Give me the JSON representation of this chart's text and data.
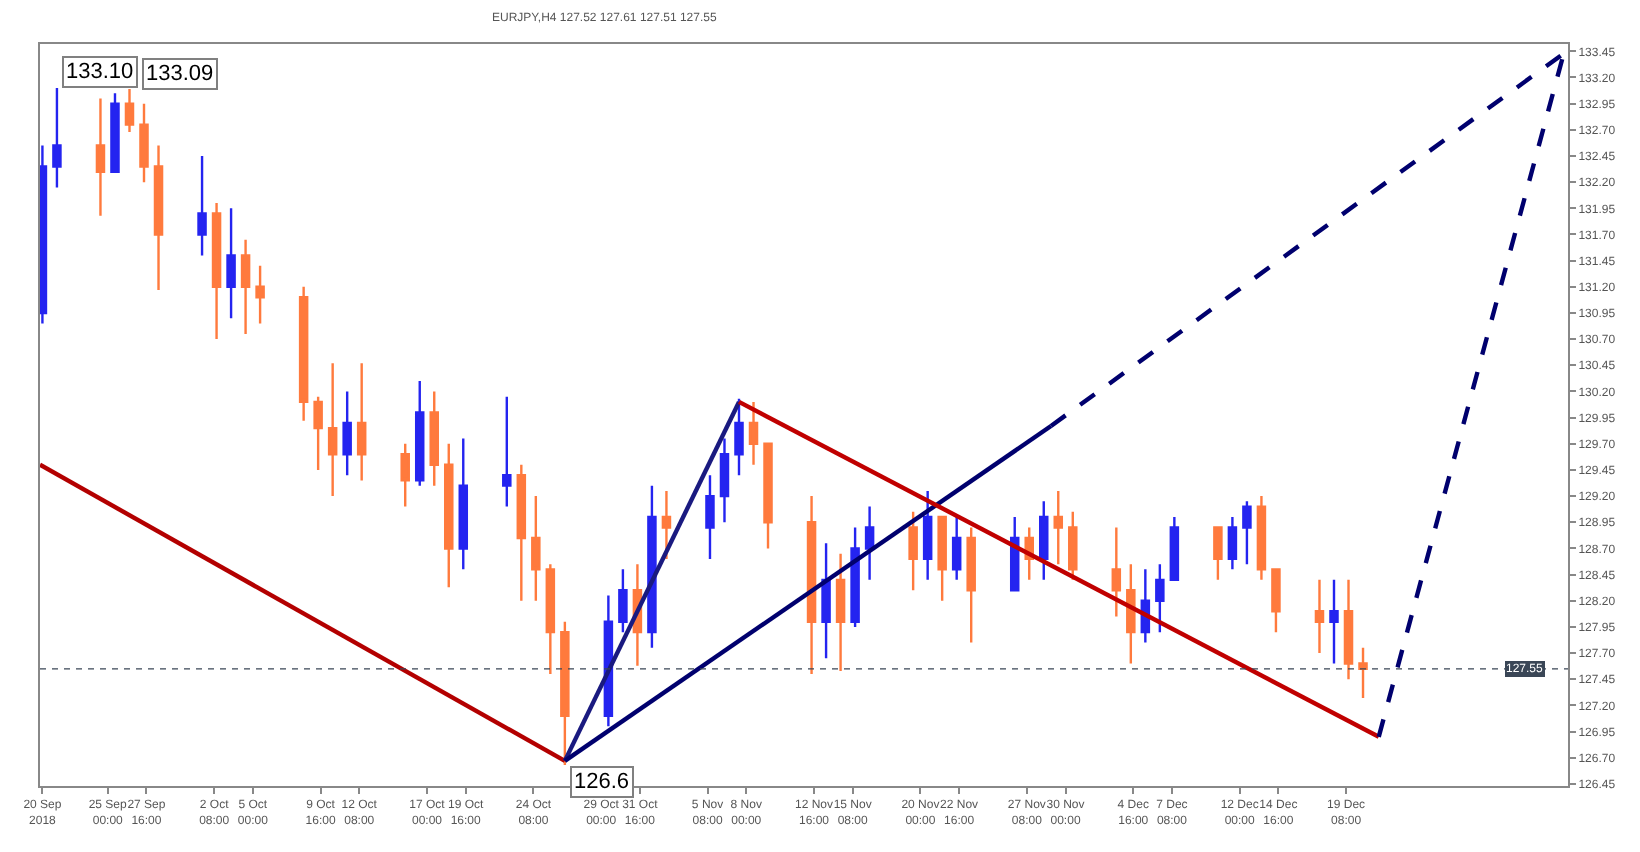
{
  "chart_data": {
    "type": "candlestick",
    "title": "EURJPY,H4 127.52 127.61 127.51 127.55",
    "x": [
      "2018-09-20T12:00",
      "2018-09-21T12:00",
      "2018-09-24T12:00",
      "2018-09-25T12:00",
      "2018-09-26T12:00",
      "2018-09-27T12:00",
      "2018-09-28T12:00",
      "2018-10-01T12:00",
      "2018-10-02T12:00",
      "2018-10-03T12:00",
      "2018-10-04T12:00",
      "2018-10-05T12:00",
      "2018-10-08T12:00",
      "2018-10-09T12:00",
      "2018-10-10T12:00",
      "2018-10-11T12:00",
      "2018-10-12T12:00",
      "2018-10-15T12:00",
      "2018-10-16T12:00",
      "2018-10-17T12:00",
      "2018-10-18T12:00",
      "2018-10-19T12:00",
      "2018-10-22T12:00",
      "2018-10-23T12:00",
      "2018-10-24T12:00",
      "2018-10-25T12:00",
      "2018-10-26T12:00",
      "2018-10-29T12:00",
      "2018-10-30T12:00",
      "2018-10-31T12:00",
      "2018-11-01T12:00",
      "2018-11-02T12:00",
      "2018-11-05T12:00",
      "2018-11-06T12:00",
      "2018-11-07T12:00",
      "2018-11-08T12:00",
      "2018-11-09T12:00",
      "2018-11-12T12:00",
      "2018-11-13T12:00",
      "2018-11-14T12:00",
      "2018-11-15T12:00",
      "2018-11-16T12:00",
      "2018-11-19T12:00",
      "2018-11-20T12:00",
      "2018-11-21T12:00",
      "2018-11-22T12:00",
      "2018-11-23T12:00",
      "2018-11-26T12:00",
      "2018-11-27T12:00",
      "2018-11-28T12:00",
      "2018-11-29T12:00",
      "2018-11-30T12:00",
      "2018-12-03T12:00",
      "2018-12-04T12:00",
      "2018-12-05T12:00",
      "2018-12-06T12:00",
      "2018-12-07T12:00",
      "2018-12-10T12:00",
      "2018-12-11T12:00",
      "2018-12-12T12:00",
      "2018-12-13T12:00",
      "2018-12-14T12:00",
      "2018-12-17T12:00",
      "2018-12-18T12:00",
      "2018-12-19T12:00",
      "2018-12-20T12:00"
    ],
    "ohlc": [
      [
        130.95,
        132.55,
        130.85,
        132.35
      ],
      [
        132.35,
        133.1,
        132.15,
        132.55
      ],
      [
        132.55,
        133.0,
        131.88,
        132.3
      ],
      [
        132.3,
        133.05,
        132.3,
        132.95
      ],
      [
        132.95,
        133.09,
        132.68,
        132.75
      ],
      [
        132.75,
        132.95,
        132.2,
        132.35
      ],
      [
        132.35,
        132.55,
        131.17,
        131.7
      ],
      [
        131.7,
        132.45,
        131.5,
        131.9
      ],
      [
        131.9,
        132.0,
        130.7,
        131.2
      ],
      [
        131.2,
        131.95,
        130.9,
        131.5
      ],
      [
        131.5,
        131.65,
        130.75,
        131.2
      ],
      [
        131.2,
        131.4,
        130.85,
        131.1
      ],
      [
        131.1,
        131.2,
        129.92,
        130.1
      ],
      [
        130.1,
        130.15,
        129.45,
        129.85
      ],
      [
        129.85,
        130.47,
        129.2,
        129.6
      ],
      [
        129.6,
        130.2,
        129.4,
        129.9
      ],
      [
        129.9,
        130.47,
        129.35,
        129.6
      ],
      [
        129.6,
        129.7,
        129.1,
        129.35
      ],
      [
        129.35,
        130.3,
        129.3,
        130.0
      ],
      [
        130.0,
        130.2,
        129.3,
        129.5
      ],
      [
        129.5,
        129.7,
        128.33,
        128.7
      ],
      [
        128.7,
        129.75,
        128.5,
        129.3
      ],
      [
        129.3,
        130.15,
        129.1,
        129.4
      ],
      [
        129.4,
        129.5,
        128.2,
        128.8
      ],
      [
        128.8,
        129.2,
        128.2,
        128.5
      ],
      [
        128.5,
        128.55,
        127.5,
        127.9
      ],
      [
        127.9,
        128.0,
        126.63,
        127.1
      ],
      [
        127.1,
        128.25,
        127.0,
        128.0
      ],
      [
        128.0,
        128.5,
        127.9,
        128.3
      ],
      [
        128.3,
        128.55,
        127.58,
        127.9
      ],
      [
        127.9,
        129.3,
        127.75,
        129.0
      ],
      [
        129.0,
        129.25,
        128.6,
        128.9
      ],
      [
        128.9,
        129.4,
        128.6,
        129.2
      ],
      [
        129.2,
        129.75,
        128.95,
        129.6
      ],
      [
        129.6,
        130.13,
        129.4,
        129.9
      ],
      [
        129.9,
        130.1,
        129.5,
        129.7
      ],
      [
        129.7,
        129.7,
        128.7,
        128.95
      ],
      [
        128.95,
        129.2,
        127.5,
        128.0
      ],
      [
        128.0,
        128.75,
        127.65,
        128.4
      ],
      [
        128.4,
        128.65,
        127.53,
        128.0
      ],
      [
        128.0,
        128.9,
        127.95,
        128.7
      ],
      [
        128.7,
        129.1,
        128.4,
        128.9
      ],
      [
        128.9,
        129.05,
        128.3,
        128.6
      ],
      [
        128.6,
        129.25,
        128.4,
        129.0
      ],
      [
        129.0,
        129.0,
        128.2,
        128.5
      ],
      [
        128.5,
        129.0,
        128.4,
        128.8
      ],
      [
        128.8,
        128.9,
        127.8,
        128.3
      ],
      [
        128.3,
        129.0,
        128.3,
        128.8
      ],
      [
        128.8,
        128.9,
        128.4,
        128.6
      ],
      [
        128.6,
        129.15,
        128.4,
        129.0
      ],
      [
        129.0,
        129.25,
        128.55,
        128.9
      ],
      [
        128.9,
        129.05,
        128.4,
        128.5
      ],
      [
        128.5,
        128.9,
        128.05,
        128.3
      ],
      [
        128.3,
        128.55,
        127.6,
        127.9
      ],
      [
        127.9,
        128.5,
        127.8,
        128.2
      ],
      [
        128.2,
        128.55,
        127.9,
        128.4
      ],
      [
        128.4,
        129.0,
        128.4,
        128.9
      ],
      [
        128.9,
        128.9,
        128.4,
        128.6
      ],
      [
        128.6,
        129.0,
        128.5,
        128.9
      ],
      [
        128.9,
        129.15,
        128.55,
        129.1
      ],
      [
        129.1,
        129.2,
        128.4,
        128.5
      ],
      [
        128.5,
        128.5,
        127.9,
        128.1
      ],
      [
        128.1,
        128.4,
        127.7,
        128.0
      ],
      [
        128.0,
        128.4,
        127.6,
        128.1
      ],
      [
        128.1,
        128.4,
        127.45,
        127.6
      ],
      [
        127.6,
        127.75,
        127.27,
        127.55
      ]
    ],
    "colors": [
      "#2424f0",
      "#2424f0",
      "#ff7a3d",
      "#2424f0",
      "#ff7a3d",
      "#ff7a3d",
      "#ff7a3d",
      "#2424f0",
      "#ff7a3d",
      "#2424f0",
      "#ff7a3d",
      "#ff7a3d",
      "#ff7a3d",
      "#ff7a3d",
      "#ff7a3d",
      "#2424f0",
      "#ff7a3d",
      "#ff7a3d",
      "#2424f0",
      "#ff7a3d",
      "#ff7a3d",
      "#2424f0",
      "#2424f0",
      "#ff7a3d",
      "#ff7a3d",
      "#ff7a3d",
      "#ff7a3d",
      "#2424f0",
      "#2424f0",
      "#ff7a3d",
      "#2424f0",
      "#ff7a3d",
      "#2424f0",
      "#2424f0",
      "#2424f0",
      "#ff7a3d",
      "#ff7a3d",
      "#ff7a3d",
      "#2424f0",
      "#ff7a3d",
      "#2424f0",
      "#2424f0",
      "#ff7a3d",
      "#2424f0",
      "#ff7a3d",
      "#2424f0",
      "#ff7a3d",
      "#2424f0",
      "#ff7a3d",
      "#2424f0",
      "#ff7a3d",
      "#ff7a3d",
      "#ff7a3d",
      "#ff7a3d",
      "#2424f0",
      "#2424f0",
      "#2424f0",
      "#ff7a3d",
      "#2424f0",
      "#2424f0",
      "#ff7a3d",
      "#ff7a3d",
      "#ff7a3d",
      "#2424f0",
      "#ff7a3d",
      "#ff7a3d"
    ],
    "series": [
      {
        "type": "line",
        "color": "#b30000",
        "x": [
          "2018-09-20T08:00",
          "2018-10-26T12:00"
        ],
        "values": [
          129.5,
          126.67
        ],
        "line_style": "solid"
      },
      {
        "type": "line",
        "color": "#1a1a80",
        "x": [
          "2018-10-26T12:00",
          "2018-11-07T12:00"
        ],
        "values": [
          126.67,
          130.1
        ],
        "line_style": "solid"
      },
      {
        "type": "line",
        "color": "#00006e",
        "x": [
          "2018-10-26T12:00",
          "2018-11-29T00:00"
        ],
        "values": [
          126.67,
          129.87
        ],
        "line_style": "solid"
      },
      {
        "type": "line",
        "color": "#00006e",
        "x": [
          "2018-11-29T00:00",
          "2019-01-03T08:00"
        ],
        "values": [
          129.87,
          133.43
        ],
        "line_style": "dashed"
      },
      {
        "type": "line",
        "color": "#c00000",
        "x": [
          "2018-11-07T12:00",
          "2018-12-21T14:00"
        ],
        "values": [
          130.1,
          126.9
        ],
        "line_style": "solid"
      },
      {
        "type": "line",
        "color": "#00006e",
        "x": [
          "2018-12-21T14:00",
          "2019-01-03T08:00"
        ],
        "values": [
          126.9,
          133.43
        ],
        "line_style": "dashed"
      }
    ],
    "annotations": [
      {
        "text": "133.10",
        "x": "2018-09-21T12:00",
        "y": 133.1
      },
      {
        "text": "133.09",
        "x": "2018-09-27T00:00",
        "y": 133.09
      },
      {
        "text": "126.6",
        "x": "2018-10-26T12:00",
        "y": 126.63
      }
    ],
    "ref_lines": [
      {
        "axis": "y",
        "value": 127.55,
        "label": "127.55",
        "color": "#3a4656"
      }
    ],
    "xlim": [
      "2018-09-20T08:00",
      "2019-01-03T15:00"
    ],
    "xticks": [
      {
        "value": "2018-09-20T12:00",
        "label": "20 Sep 2018"
      },
      {
        "value": "2018-09-25T00:00",
        "label": "25 Sep 00:00"
      },
      {
        "value": "2018-09-27T16:00",
        "label": "27 Sep 16:00"
      },
      {
        "value": "2018-10-02T08:00",
        "label": "2 Oct 08:00"
      },
      {
        "value": "2018-10-05T00:00",
        "label": "5 Oct 00:00"
      },
      {
        "value": "2018-10-09T16:00",
        "label": "9 Oct 16:00"
      },
      {
        "value": "2018-10-12T08:00",
        "label": "12 Oct 08:00"
      },
      {
        "value": "2018-10-17T00:00",
        "label": "17 Oct 00:00"
      },
      {
        "value": "2018-10-19T16:00",
        "label": "19 Oct 16:00"
      },
      {
        "value": "2018-10-24T08:00",
        "label": "24 Oct 08:00"
      },
      {
        "value": "2018-10-29T00:00",
        "label": "29 Oct 00:00"
      },
      {
        "value": "2018-10-31T16:00",
        "label": "31 Oct 16:00"
      },
      {
        "value": "2018-11-05T08:00",
        "label": "5 Nov 08:00"
      },
      {
        "value": "2018-11-08T00:00",
        "label": "8 Nov 00:00"
      },
      {
        "value": "2018-11-12T16:00",
        "label": "12 Nov 16:00"
      },
      {
        "value": "2018-11-15T08:00",
        "label": "15 Nov 08:00"
      },
      {
        "value": "2018-11-20T00:00",
        "label": "20 Nov 00:00"
      },
      {
        "value": "2018-11-22T16:00",
        "label": "22 Nov 16:00"
      },
      {
        "value": "2018-11-27T08:00",
        "label": "27 Nov 08:00"
      },
      {
        "value": "2018-11-30T00:00",
        "label": "30 Nov 00:00"
      },
      {
        "value": "2018-12-04T16:00",
        "label": "4 Dec 16:00"
      },
      {
        "value": "2018-12-07T08:00",
        "label": "7 Dec 08:00"
      },
      {
        "value": "2018-12-12T00:00",
        "label": "12 Dec 00:00"
      },
      {
        "value": "2018-12-14T16:00",
        "label": "14 Dec 16:00"
      },
      {
        "value": "2018-12-19T08:00",
        "label": "19 Dec 08:00"
      }
    ],
    "ylim": [
      126.43,
      133.52
    ],
    "yticks": [
      {
        "value": 126.45,
        "label": "126.45"
      },
      {
        "value": 126.7,
        "label": "126.70"
      },
      {
        "value": 126.95,
        "label": "126.95"
      },
      {
        "value": 127.2,
        "label": "127.20"
      },
      {
        "value": 127.45,
        "label": "127.45"
      },
      {
        "value": 127.7,
        "label": "127.70"
      },
      {
        "value": 127.95,
        "label": "127.95"
      },
      {
        "value": 128.2,
        "label": "128.20"
      },
      {
        "value": 128.45,
        "label": "128.45"
      },
      {
        "value": 128.7,
        "label": "128.70"
      },
      {
        "value": 128.95,
        "label": "128.95"
      },
      {
        "value": 129.2,
        "label": "129.20"
      },
      {
        "value": 129.45,
        "label": "129.45"
      },
      {
        "value": 129.7,
        "label": "129.70"
      },
      {
        "value": 129.95,
        "label": "129.95"
      },
      {
        "value": 130.2,
        "label": "130.20"
      },
      {
        "value": 130.45,
        "label": "130.45"
      },
      {
        "value": 130.7,
        "label": "130.70"
      },
      {
        "value": 130.95,
        "label": "130.95"
      },
      {
        "value": 131.2,
        "label": "131.20"
      },
      {
        "value": 131.45,
        "label": "131.45"
      },
      {
        "value": 131.7,
        "label": "131.70"
      },
      {
        "value": 131.95,
        "label": "131.95"
      },
      {
        "value": 132.2,
        "label": "132.20"
      },
      {
        "value": 132.45,
        "label": "132.45"
      },
      {
        "value": 132.7,
        "label": "132.70"
      },
      {
        "value": 132.95,
        "label": "132.95"
      },
      {
        "value": 133.2,
        "label": "133.20"
      },
      {
        "value": 133.45,
        "label": "133.45"
      }
    ]
  }
}
